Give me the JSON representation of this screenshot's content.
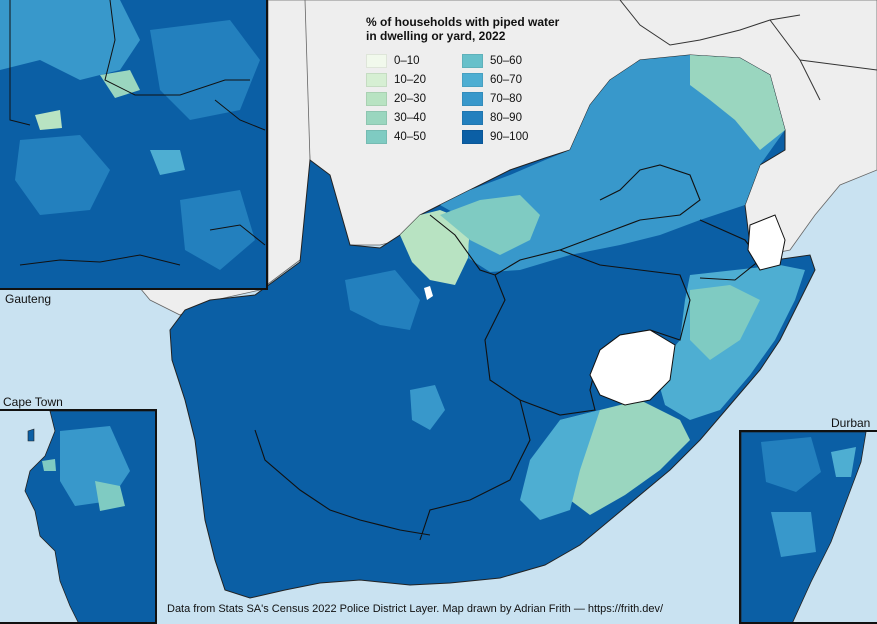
{
  "legend": {
    "title_line1": "% of households with piped water",
    "title_line2": "in dwelling or yard, 2022",
    "items": [
      {
        "label": "0–10",
        "color": "#f1f9ec"
      },
      {
        "label": "10–20",
        "color": "#d6efd3"
      },
      {
        "label": "20–30",
        "color": "#b8e3c2"
      },
      {
        "label": "30–40",
        "color": "#9ad6bf"
      },
      {
        "label": "40–50",
        "color": "#7fcbc2"
      },
      {
        "label": "50–60",
        "color": "#67c0ca"
      },
      {
        "label": "60–70",
        "color": "#4eaed2"
      },
      {
        "label": "70–80",
        "color": "#3898cb"
      },
      {
        "label": "80–90",
        "color": "#2380be"
      },
      {
        "label": "90–100",
        "color": "#0b5fa5"
      }
    ]
  },
  "insets": {
    "gauteng": "Gauteng",
    "cape_town": "Cape Town",
    "durban": "Durban"
  },
  "credit": "Data from Stats SA's Census 2022 Police District Layer.  Map drawn by Adrian Frith — https://frith.dev/",
  "colors": {
    "ocean": "#c9e2f1",
    "neighbour_land": "#eeeeee",
    "dominant": "#0b5fa5"
  }
}
